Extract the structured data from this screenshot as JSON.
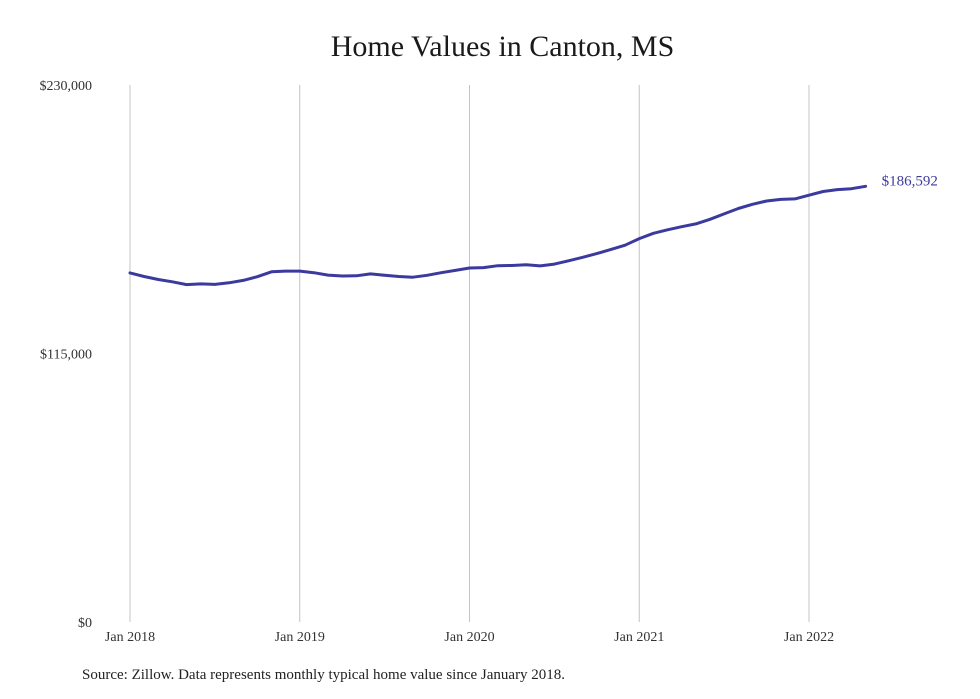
{
  "chart_data": {
    "type": "line",
    "title": "Home Values in Canton, MS",
    "xlabel": "",
    "ylabel": "",
    "ylim": [
      0,
      230000
    ],
    "yticks": [
      0,
      115000,
      230000
    ],
    "ytick_labels": [
      "$0",
      "$115,000",
      "$230,000"
    ],
    "xticks": [
      "2018-01",
      "2019-01",
      "2020-01",
      "2021-01",
      "2022-01"
    ],
    "xtick_labels": [
      "Jan 2018",
      "Jan 2019",
      "Jan 2020",
      "Jan 2021",
      "Jan 2022"
    ],
    "grid": "vertical",
    "line_color": "#3b3a9e",
    "x": [
      "2018-01",
      "2018-02",
      "2018-03",
      "2018-04",
      "2018-05",
      "2018-06",
      "2018-07",
      "2018-08",
      "2018-09",
      "2018-10",
      "2018-11",
      "2018-12",
      "2019-01",
      "2019-02",
      "2019-03",
      "2019-04",
      "2019-05",
      "2019-06",
      "2019-07",
      "2019-08",
      "2019-09",
      "2019-10",
      "2019-11",
      "2019-12",
      "2020-01",
      "2020-02",
      "2020-03",
      "2020-04",
      "2020-05",
      "2020-06",
      "2020-07",
      "2020-08",
      "2020-09",
      "2020-10",
      "2020-11",
      "2020-12",
      "2021-01",
      "2021-02",
      "2021-03",
      "2021-04",
      "2021-05",
      "2021-06",
      "2021-07",
      "2021-08",
      "2021-09",
      "2021-10",
      "2021-11",
      "2021-12",
      "2022-01",
      "2022-02",
      "2022-03",
      "2022-04",
      "2022-05"
    ],
    "values": [
      149500,
      148000,
      146700,
      145700,
      144500,
      144800,
      144600,
      145300,
      146300,
      147900,
      150000,
      150300,
      150300,
      149600,
      148600,
      148200,
      148300,
      149100,
      148500,
      148000,
      147700,
      148500,
      149600,
      150600,
      151600,
      151800,
      152600,
      152700,
      153000,
      152500,
      153300,
      154700,
      156200,
      157800,
      159600,
      161400,
      164200,
      166500,
      168000,
      169300,
      170500,
      172500,
      174800,
      177100,
      178900,
      180300,
      181000,
      181200,
      182800,
      184400,
      185200,
      185600,
      186592
    ],
    "end_label": "$186,592"
  },
  "footer": {
    "source": "Source: Zillow. Data represents monthly typical home value since January 2018."
  }
}
